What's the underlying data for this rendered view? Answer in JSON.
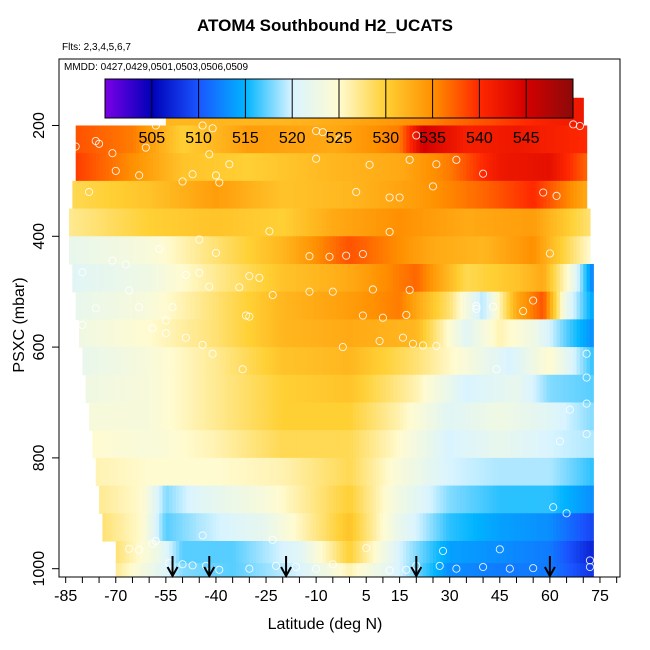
{
  "chart_data": {
    "type": "heatmap",
    "title": "ATOM4 Southbound H2_UCATS",
    "subtitle_lines": [
      "Flts: 2,3,4,5,6,7",
      "MMDD: 0427,0429,0501,0503,0506,0509"
    ],
    "xlabel": "Latitude (deg N)",
    "ylabel": "PSXC (mbar)",
    "xlim": [
      -87,
      81
    ],
    "ylim": [
      1015,
      80
    ],
    "y_reversed": true,
    "x_ticks": [
      -85,
      -70,
      -55,
      -40,
      -25,
      -10,
      5,
      15,
      30,
      45,
      60,
      75
    ],
    "x_minor_step": 5,
    "y_ticks": [
      200,
      400,
      600,
      800,
      1000
    ],
    "colorbar": {
      "min": 500,
      "max": 550,
      "ticks": [
        505,
        510,
        515,
        520,
        525,
        530,
        535,
        540,
        545
      ],
      "colors": [
        "#7a00e6",
        "#0000b8",
        "#1a55ff",
        "#00b4ff",
        "#d9f4ff",
        "#fffbd1",
        "#ffd034",
        "#ff9000",
        "#ff2800",
        "#d40000",
        "#8c0a0a"
      ]
    },
    "profile_arrow_latitudes": [
      -53,
      -42,
      -19,
      20,
      60
    ],
    "levels": [
      {
        "p": 175,
        "lo": -55,
        "hi": 70,
        "v": [
          [
            -55,
            532
          ],
          [
            -20,
            532
          ],
          [
            0,
            533
          ],
          [
            20,
            535
          ],
          [
            40,
            538
          ],
          [
            60,
            541
          ],
          [
            70,
            542
          ]
        ]
      },
      {
        "p": 225,
        "lo": -82,
        "hi": 71,
        "v": [
          [
            -82,
            538
          ],
          [
            -65,
            536
          ],
          [
            -50,
            530
          ],
          [
            -30,
            534
          ],
          [
            -5,
            533
          ],
          [
            15,
            536
          ],
          [
            22,
            545
          ],
          [
            35,
            541
          ],
          [
            50,
            542
          ],
          [
            71,
            540
          ]
        ]
      },
      {
        "p": 275,
        "lo": -82,
        "hi": 71,
        "v": [
          [
            -82,
            539
          ],
          [
            -65,
            535
          ],
          [
            -50,
            531
          ],
          [
            -30,
            530
          ],
          [
            -5,
            532
          ],
          [
            15,
            533
          ],
          [
            30,
            536
          ],
          [
            45,
            542
          ],
          [
            60,
            543
          ],
          [
            71,
            537
          ]
        ]
      },
      {
        "p": 325,
        "lo": -83,
        "hi": 71,
        "v": [
          [
            -83,
            529
          ],
          [
            -60,
            531
          ],
          [
            -40,
            534
          ],
          [
            -20,
            531
          ],
          [
            0,
            532
          ],
          [
            20,
            534
          ],
          [
            40,
            537
          ],
          [
            55,
            540
          ],
          [
            71,
            533
          ]
        ]
      },
      {
        "p": 375,
        "lo": -84,
        "hi": 72,
        "v": [
          [
            -84,
            527
          ],
          [
            -60,
            530
          ],
          [
            -40,
            531
          ],
          [
            -20,
            530
          ],
          [
            -5,
            533
          ],
          [
            15,
            535
          ],
          [
            35,
            533
          ],
          [
            55,
            534
          ],
          [
            72,
            528
          ]
        ]
      },
      {
        "p": 425,
        "lo": -84,
        "hi": 72,
        "v": [
          [
            -84,
            522
          ],
          [
            -60,
            524
          ],
          [
            -40,
            528
          ],
          [
            -20,
            532
          ],
          [
            0,
            538
          ],
          [
            10,
            536
          ],
          [
            25,
            533
          ],
          [
            40,
            532
          ],
          [
            55,
            535
          ],
          [
            72,
            525
          ]
        ]
      },
      {
        "p": 475,
        "lo": -83,
        "hi": 73,
        "v": [
          [
            -83,
            521
          ],
          [
            -60,
            523
          ],
          [
            -40,
            527
          ],
          [
            -20,
            531
          ],
          [
            0,
            533
          ],
          [
            20,
            537
          ],
          [
            35,
            529
          ],
          [
            50,
            531
          ],
          [
            58,
            533
          ],
          [
            66,
            524
          ],
          [
            73,
            512
          ]
        ]
      },
      {
        "p": 525,
        "lo": -82,
        "hi": 73,
        "v": [
          [
            -82,
            522
          ],
          [
            -60,
            524
          ],
          [
            -40,
            528
          ],
          [
            -20,
            532
          ],
          [
            0,
            534
          ],
          [
            15,
            536
          ],
          [
            30,
            528
          ],
          [
            40,
            519
          ],
          [
            50,
            533
          ],
          [
            58,
            538
          ],
          [
            65,
            522
          ],
          [
            73,
            514
          ]
        ]
      },
      {
        "p": 575,
        "lo": -81,
        "hi": 73,
        "v": [
          [
            -81,
            523
          ],
          [
            -60,
            525
          ],
          [
            -40,
            528
          ],
          [
            -20,
            532
          ],
          [
            0,
            533
          ],
          [
            20,
            532
          ],
          [
            35,
            521
          ],
          [
            45,
            526
          ],
          [
            55,
            523
          ],
          [
            65,
            517
          ],
          [
            73,
            513
          ]
        ]
      },
      {
        "p": 625,
        "lo": -80,
        "hi": 73,
        "v": [
          [
            -80,
            522
          ],
          [
            -60,
            524
          ],
          [
            -40,
            527
          ],
          [
            -20,
            531
          ],
          [
            0,
            532
          ],
          [
            20,
            528
          ],
          [
            35,
            524
          ],
          [
            48,
            520
          ],
          [
            60,
            525
          ],
          [
            73,
            516
          ]
        ]
      },
      {
        "p": 675,
        "lo": -79,
        "hi": 73,
        "v": [
          [
            -79,
            523
          ],
          [
            -60,
            524
          ],
          [
            -40,
            527
          ],
          [
            -20,
            530
          ],
          [
            0,
            531
          ],
          [
            20,
            526
          ],
          [
            35,
            520
          ],
          [
            50,
            522
          ],
          [
            60,
            518
          ],
          [
            73,
            517
          ]
        ]
      },
      {
        "p": 725,
        "lo": -78,
        "hi": 73,
        "v": [
          [
            -78,
            524
          ],
          [
            -60,
            524
          ],
          [
            -40,
            527
          ],
          [
            -20,
            530
          ],
          [
            0,
            530
          ],
          [
            15,
            526
          ],
          [
            30,
            521
          ],
          [
            45,
            523
          ],
          [
            60,
            521
          ],
          [
            73,
            518
          ]
        ]
      },
      {
        "p": 775,
        "lo": -77,
        "hi": 73,
        "v": [
          [
            -77,
            525
          ],
          [
            -60,
            524
          ],
          [
            -40,
            526
          ],
          [
            -20,
            529
          ],
          [
            0,
            529
          ],
          [
            15,
            525
          ],
          [
            30,
            520
          ],
          [
            45,
            522
          ],
          [
            60,
            520
          ],
          [
            73,
            519
          ]
        ]
      },
      {
        "p": 825,
        "lo": -76,
        "hi": 73,
        "v": [
          [
            -76,
            526
          ],
          [
            -60,
            525
          ],
          [
            -40,
            525
          ],
          [
            -20,
            526
          ],
          [
            0,
            529
          ],
          [
            15,
            524
          ],
          [
            30,
            520
          ],
          [
            45,
            519
          ],
          [
            60,
            519
          ],
          [
            73,
            516
          ]
        ]
      },
      {
        "p": 875,
        "lo": -75,
        "hi": 73,
        "v": [
          [
            -75,
            527
          ],
          [
            -62,
            525
          ],
          [
            -55,
            518
          ],
          [
            -45,
            521
          ],
          [
            -25,
            524
          ],
          [
            0,
            530
          ],
          [
            15,
            523
          ],
          [
            30,
            518
          ],
          [
            45,
            516
          ],
          [
            60,
            516
          ],
          [
            73,
            513
          ]
        ]
      },
      {
        "p": 925,
        "lo": -74,
        "hi": 73,
        "v": [
          [
            -74,
            528
          ],
          [
            -62,
            525
          ],
          [
            -55,
            517
          ],
          [
            -45,
            519
          ],
          [
            -25,
            522
          ],
          [
            0,
            531
          ],
          [
            15,
            522
          ],
          [
            30,
            516
          ],
          [
            45,
            514
          ],
          [
            60,
            513
          ],
          [
            73,
            509
          ]
        ]
      },
      {
        "p": 975,
        "lo": -70,
        "hi": 73,
        "v": [
          [
            -70,
            528
          ],
          [
            -58,
            523
          ],
          [
            -50,
            517
          ],
          [
            -35,
            517
          ],
          [
            -15,
            521
          ],
          [
            0,
            530
          ],
          [
            15,
            520
          ],
          [
            30,
            514
          ],
          [
            45,
            513
          ],
          [
            60,
            512
          ],
          [
            73,
            507
          ]
        ]
      },
      {
        "p": 1005,
        "lo": -70,
        "hi": 73,
        "v": [
          [
            -70,
            527
          ],
          [
            -58,
            522
          ],
          [
            -50,
            518
          ],
          [
            -35,
            517
          ],
          [
            -15,
            520
          ],
          [
            0,
            526
          ],
          [
            15,
            520
          ],
          [
            30,
            513
          ],
          [
            45,
            512
          ],
          [
            60,
            512
          ],
          [
            73,
            508
          ]
        ]
      }
    ],
    "samples": [
      [
        -58,
        200
      ],
      [
        -44,
        200
      ],
      [
        -41,
        205
      ],
      [
        -10,
        210
      ],
      [
        -8,
        212
      ],
      [
        -3,
        225
      ],
      [
        20,
        218
      ],
      [
        67,
        198
      ],
      [
        69,
        201
      ],
      [
        -82,
        238
      ],
      [
        -76,
        228
      ],
      [
        -75,
        233
      ],
      [
        -61,
        240
      ],
      [
        -42,
        252
      ],
      [
        -36,
        270
      ],
      [
        -10,
        260
      ],
      [
        18,
        262
      ],
      [
        26,
        270
      ],
      [
        32,
        262
      ],
      [
        -71,
        250
      ],
      [
        -70,
        282
      ],
      [
        -47,
        288
      ],
      [
        -40,
        290
      ],
      [
        6,
        271
      ],
      [
        25,
        310
      ],
      [
        40,
        287
      ],
      [
        58,
        321
      ],
      [
        62,
        327
      ],
      [
        -63,
        290
      ],
      [
        15,
        330
      ],
      [
        12,
        330
      ],
      [
        2,
        320
      ],
      [
        -50,
        301
      ],
      [
        -39,
        303
      ],
      [
        -78,
        320
      ],
      [
        -24,
        391
      ],
      [
        -45,
        406
      ],
      [
        12,
        392
      ],
      [
        -57,
        423
      ],
      [
        -40,
        430
      ],
      [
        -12,
        436
      ],
      [
        -6,
        437
      ],
      [
        -1,
        435
      ],
      [
        4,
        432
      ],
      [
        60,
        431
      ],
      [
        -71,
        444
      ],
      [
        -67,
        451
      ],
      [
        -45,
        466
      ],
      [
        -49,
        470
      ],
      [
        -30,
        472
      ],
      [
        -27,
        475
      ],
      [
        -80,
        465
      ],
      [
        -66,
        498
      ],
      [
        -42,
        491
      ],
      [
        -33,
        492
      ],
      [
        -23,
        506
      ],
      [
        -12,
        500
      ],
      [
        -5,
        500
      ],
      [
        7,
        496
      ],
      [
        18,
        497
      ],
      [
        38,
        526
      ],
      [
        43,
        527
      ],
      [
        55,
        516
      ],
      [
        -63,
        528
      ],
      [
        -76,
        530
      ],
      [
        -53,
        528
      ],
      [
        4,
        543
      ],
      [
        10,
        547
      ],
      [
        17,
        542
      ],
      [
        38,
        531
      ],
      [
        52,
        535
      ],
      [
        -31,
        543
      ],
      [
        -30,
        545
      ],
      [
        -55,
        552
      ],
      [
        -59,
        566
      ],
      [
        -55,
        575
      ],
      [
        -49,
        583
      ],
      [
        -44,
        596
      ],
      [
        -41,
        612
      ],
      [
        16,
        583
      ],
      [
        19,
        594
      ],
      [
        22,
        597
      ],
      [
        26,
        598
      ],
      [
        9,
        589
      ],
      [
        -80,
        560
      ],
      [
        -2,
        600
      ],
      [
        -32,
        640
      ],
      [
        44,
        640
      ],
      [
        71,
        612
      ],
      [
        71,
        655
      ],
      [
        71,
        702
      ],
      [
        66,
        713
      ],
      [
        71,
        757
      ],
      [
        63,
        770
      ],
      [
        61,
        889
      ],
      [
        65,
        900
      ],
      [
        -58,
        950
      ],
      [
        -59,
        955
      ],
      [
        -66,
        964
      ],
      [
        -63,
        966
      ],
      [
        -44,
        940
      ],
      [
        -23,
        948
      ],
      [
        28,
        968
      ],
      [
        45,
        965
      ],
      [
        5,
        963
      ],
      [
        -54,
        990
      ],
      [
        -50,
        992
      ],
      [
        -47,
        994
      ],
      [
        -43,
        995
      ],
      [
        -39,
        1002
      ],
      [
        -30,
        1000
      ],
      [
        -22,
        995
      ],
      [
        -16,
        997
      ],
      [
        -10,
        1000
      ],
      [
        -5,
        992
      ],
      [
        12,
        1003
      ],
      [
        17,
        1002
      ],
      [
        20,
        995
      ],
      [
        27,
        995
      ],
      [
        32,
        1000
      ],
      [
        40,
        997
      ],
      [
        48,
        1000
      ],
      [
        55,
        999
      ],
      [
        72,
        985
      ],
      [
        72,
        997
      ]
    ]
  }
}
